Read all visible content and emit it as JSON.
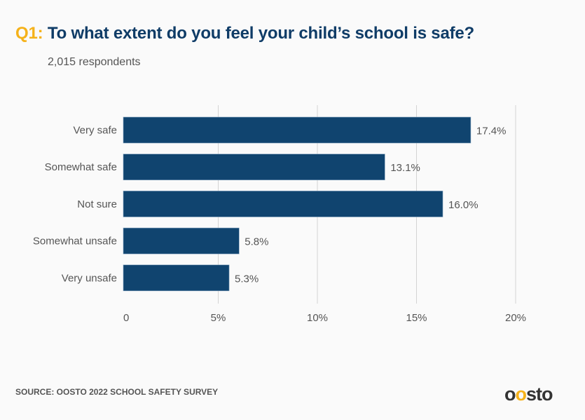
{
  "title_prefix": "Q1:",
  "title": "To what extent do you feel your child’s school is safe?",
  "subtitle": "2,015 respondents",
  "source": "SOURCE: OOSTO 2022 SCHOOL SAFETY SURVEY",
  "logo": "oosto",
  "colors": {
    "bar": "#10446f",
    "accent": "#f5b21a",
    "title": "#0f3c67"
  },
  "chart_data": {
    "type": "bar",
    "orientation": "horizontal",
    "title": "To what extent do you feel your child’s school is safe?",
    "categories": [
      "Very safe",
      "Somewhat safe",
      "Not sure",
      "Somewhat unsafe",
      "Very unsafe"
    ],
    "values": [
      17.4,
      13.1,
      16.0,
      5.8,
      5.3
    ],
    "value_labels": [
      "17.4%",
      "13.1%",
      "16.0%",
      "5.8%",
      "5.3%"
    ],
    "xlim": [
      0,
      20
    ],
    "xticks": [
      0,
      5,
      10,
      15,
      20
    ],
    "xtick_labels": [
      "0",
      "5%",
      "10%",
      "15%",
      "20%"
    ],
    "grid": true,
    "xlabel": "",
    "ylabel": ""
  }
}
